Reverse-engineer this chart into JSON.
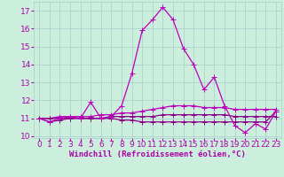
{
  "xlabel": "Windchill (Refroidissement éolien,°C)",
  "background_color": "#cceedd",
  "grid_color": "#aacccc",
  "line_color": "#bb00bb",
  "line_color2": "#880088",
  "x": [
    0,
    1,
    2,
    3,
    4,
    5,
    6,
    7,
    8,
    9,
    10,
    11,
    12,
    13,
    14,
    15,
    16,
    17,
    18,
    19,
    20,
    21,
    22,
    23
  ],
  "series": [
    [
      11.0,
      10.8,
      11.0,
      11.1,
      11.0,
      11.9,
      11.0,
      11.1,
      11.7,
      13.5,
      15.9,
      16.5,
      17.2,
      16.5,
      14.9,
      14.0,
      12.6,
      13.3,
      11.7,
      10.6,
      10.2,
      10.7,
      10.4,
      11.4
    ],
    [
      11.0,
      11.0,
      11.1,
      11.1,
      11.1,
      11.1,
      11.2,
      11.2,
      11.3,
      11.3,
      11.4,
      11.5,
      11.6,
      11.7,
      11.7,
      11.7,
      11.6,
      11.6,
      11.6,
      11.5,
      11.5,
      11.5,
      11.5,
      11.5
    ],
    [
      11.0,
      11.0,
      11.0,
      11.0,
      11.0,
      11.0,
      11.0,
      11.1,
      11.1,
      11.1,
      11.1,
      11.1,
      11.2,
      11.2,
      11.2,
      11.2,
      11.2,
      11.2,
      11.2,
      11.1,
      11.1,
      11.1,
      11.1,
      11.1
    ],
    [
      11.0,
      10.8,
      10.9,
      11.0,
      11.0,
      11.0,
      11.0,
      11.0,
      10.9,
      10.9,
      10.8,
      10.8,
      10.8,
      10.8,
      10.8,
      10.8,
      10.8,
      10.8,
      10.8,
      10.8,
      10.8,
      10.8,
      10.8,
      11.4
    ]
  ],
  "ylim": [
    9.9,
    17.5
  ],
  "yticks": [
    10,
    11,
    12,
    13,
    14,
    15,
    16,
    17
  ],
  "xticks": [
    0,
    1,
    2,
    3,
    4,
    5,
    6,
    7,
    8,
    9,
    10,
    11,
    12,
    13,
    14,
    15,
    16,
    17,
    18,
    19,
    20,
    21,
    22,
    23
  ],
  "marker": "+",
  "markersize": 4,
  "linewidth": 0.9,
  "font_color": "#aa00aa",
  "font_size": 6.5
}
